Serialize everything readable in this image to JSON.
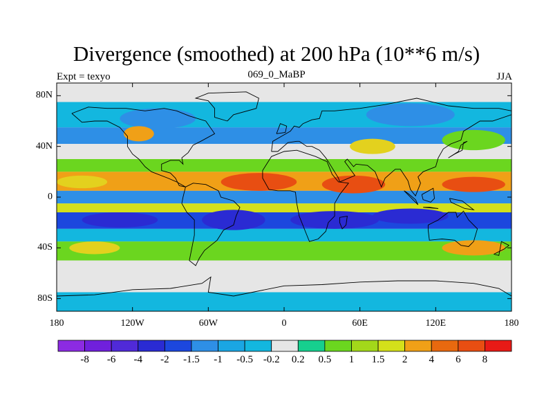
{
  "title": "Divergence (smoothed) at 200 hPa (10**6 m/s)",
  "left_label": "Expt = texyo",
  "center_label": "069_0_MaBP",
  "right_label": "JJA",
  "map": {
    "lon_range": [
      -180,
      180
    ],
    "lat_range": [
      -90,
      90
    ],
    "x_ticks": [
      {
        "lon": -180,
        "label": "180"
      },
      {
        "lon": -120,
        "label": "120W"
      },
      {
        "lon": -60,
        "label": "60W"
      },
      {
        "lon": 0,
        "label": "0"
      },
      {
        "lon": 60,
        "label": "60E"
      },
      {
        "lon": 120,
        "label": "120E"
      },
      {
        "lon": 180,
        "label": "180"
      }
    ],
    "y_ticks": [
      {
        "lat": 80,
        "label": "80N"
      },
      {
        "lat": 40,
        "label": "40N"
      },
      {
        "lat": 0,
        "label": "0"
      },
      {
        "lat": -40,
        "label": "40S"
      },
      {
        "lat": -80,
        "label": "80S"
      }
    ],
    "bands": [
      {
        "lat_from": 90,
        "lat_to": 75,
        "color": "#e6e6e6"
      },
      {
        "lat_from": 75,
        "lat_to": 55,
        "color": "#13b7df"
      },
      {
        "lat_from": 55,
        "lat_to": 42,
        "color": "#2e8fe6"
      },
      {
        "lat_from": 42,
        "lat_to": 30,
        "color": "#e6e6e6"
      },
      {
        "lat_from": 30,
        "lat_to": 20,
        "color": "#6bd61f"
      },
      {
        "lat_from": 20,
        "lat_to": 5,
        "color": "#f0a017"
      },
      {
        "lat_from": 5,
        "lat_to": -5,
        "color": "#2e8fe6"
      },
      {
        "lat_from": -5,
        "lat_to": -12,
        "color": "#d4e01a"
      },
      {
        "lat_from": -12,
        "lat_to": -25,
        "color": "#1c47de"
      },
      {
        "lat_from": -25,
        "lat_to": -35,
        "color": "#13b7df"
      },
      {
        "lat_from": -35,
        "lat_to": -50,
        "color": "#6bd61f"
      },
      {
        "lat_from": -50,
        "lat_to": -75,
        "color": "#e6e6e6"
      },
      {
        "lat_from": -75,
        "lat_to": -90,
        "color": "#13b7df"
      }
    ],
    "patches": [
      {
        "lon": -100,
        "lat": 62,
        "rlon": 30,
        "rlat": 8,
        "color": "#2e8fe6"
      },
      {
        "lon": -115,
        "lat": 50,
        "rlon": 12,
        "rlat": 6,
        "color": "#f0a017"
      },
      {
        "lon": 100,
        "lat": 65,
        "rlon": 35,
        "rlat": 9,
        "color": "#2e8fe6"
      },
      {
        "lon": 150,
        "lat": 45,
        "rlon": 25,
        "rlat": 8,
        "color": "#6bd61f"
      },
      {
        "lon": 70,
        "lat": 40,
        "rlon": 18,
        "rlat": 6,
        "color": "#e3d11e"
      },
      {
        "lon": -20,
        "lat": 12,
        "rlon": 30,
        "rlat": 7,
        "color": "#e84e12"
      },
      {
        "lon": 55,
        "lat": 10,
        "rlon": 25,
        "rlat": 7,
        "color": "#e84e12"
      },
      {
        "lon": 150,
        "lat": 10,
        "rlon": 25,
        "rlat": 6,
        "color": "#e84e12"
      },
      {
        "lon": -160,
        "lat": 12,
        "rlon": 20,
        "rlat": 5,
        "color": "#e3d11e"
      },
      {
        "lon": -40,
        "lat": -18,
        "rlon": 25,
        "rlat": 8,
        "color": "#2a2bd3"
      },
      {
        "lon": 40,
        "lat": -18,
        "rlon": 35,
        "rlat": 7,
        "color": "#2a2bd3"
      },
      {
        "lon": -130,
        "lat": -18,
        "rlon": 30,
        "rlat": 6,
        "color": "#2a2bd3"
      },
      {
        "lon": 100,
        "lat": -15,
        "rlon": 30,
        "rlat": 6,
        "color": "#2a2bd3"
      },
      {
        "lon": 150,
        "lat": -40,
        "rlon": 25,
        "rlat": 6,
        "color": "#f0a017"
      },
      {
        "lon": -150,
        "lat": -40,
        "rlon": 20,
        "rlat": 5,
        "color": "#e3d11e"
      }
    ],
    "coast": [
      [
        [
          -168,
          66
        ],
        [
          -155,
          71
        ],
        [
          -140,
          70
        ],
        [
          -125,
          70
        ],
        [
          -110,
          68
        ],
        [
          -95,
          70
        ],
        [
          -85,
          68
        ],
        [
          -75,
          64
        ],
        [
          -62,
          60
        ],
        [
          -55,
          50
        ],
        [
          -66,
          44
        ],
        [
          -72,
          41
        ],
        [
          -76,
          35
        ],
        [
          -81,
          31
        ],
        [
          -80,
          26
        ],
        [
          -83,
          29
        ],
        [
          -90,
          29
        ],
        [
          -97,
          26
        ],
        [
          -97,
          21
        ],
        [
          -90,
          19
        ],
        [
          -86,
          15
        ],
        [
          -83,
          9
        ],
        [
          -78,
          8
        ],
        [
          -85,
          12
        ],
        [
          -92,
          15
        ],
        [
          -105,
          20
        ],
        [
          -110,
          24
        ],
        [
          -115,
          30
        ],
        [
          -120,
          34
        ],
        [
          -124,
          40
        ],
        [
          -124,
          48
        ],
        [
          -130,
          55
        ],
        [
          -140,
          60
        ],
        [
          -150,
          60
        ],
        [
          -160,
          59
        ],
        [
          -168,
          66
        ]
      ],
      [
        [
          -78,
          8
        ],
        [
          -72,
          11
        ],
        [
          -62,
          10
        ],
        [
          -52,
          5
        ],
        [
          -50,
          0
        ],
        [
          -40,
          -3
        ],
        [
          -35,
          -8
        ],
        [
          -38,
          -15
        ],
        [
          -40,
          -22
        ],
        [
          -48,
          -26
        ],
        [
          -53,
          -34
        ],
        [
          -58,
          -38
        ],
        [
          -63,
          -42
        ],
        [
          -67,
          -48
        ],
        [
          -70,
          -54
        ],
        [
          -75,
          -50
        ],
        [
          -73,
          -40
        ],
        [
          -71,
          -30
        ],
        [
          -71,
          -18
        ],
        [
          -77,
          -12
        ],
        [
          -81,
          -5
        ],
        [
          -80,
          0
        ],
        [
          -78,
          8
        ]
      ],
      [
        [
          -10,
          36
        ],
        [
          -9,
          44
        ],
        [
          -2,
          48
        ],
        [
          5,
          52
        ],
        [
          8,
          56
        ],
        [
          12,
          55
        ],
        [
          15,
          58
        ],
        [
          22,
          61
        ],
        [
          28,
          62
        ],
        [
          30,
          68
        ],
        [
          40,
          68
        ],
        [
          60,
          70
        ],
        [
          80,
          73
        ],
        [
          105,
          78
        ],
        [
          130,
          72
        ],
        [
          150,
          70
        ],
        [
          170,
          70
        ],
        [
          180,
          68
        ],
        [
          180,
          65
        ],
        [
          165,
          60
        ],
        [
          155,
          60
        ],
        [
          142,
          52
        ],
        [
          140,
          45
        ],
        [
          132,
          42
        ],
        [
          126,
          38
        ],
        [
          122,
          31
        ],
        [
          120,
          24
        ],
        [
          110,
          20
        ],
        [
          106,
          16
        ],
        [
          108,
          11
        ],
        [
          104,
          1
        ],
        [
          100,
          6
        ],
        [
          98,
          13
        ],
        [
          92,
          22
        ],
        [
          88,
          22
        ],
        [
          80,
          15
        ],
        [
          77,
          8
        ],
        [
          72,
          20
        ],
        [
          66,
          25
        ],
        [
          57,
          26
        ],
        [
          55,
          24
        ],
        [
          50,
          30
        ],
        [
          48,
          28
        ],
        [
          56,
          17
        ],
        [
          44,
          12
        ],
        [
          43,
          15
        ],
        [
          35,
          28
        ],
        [
          33,
          31
        ],
        [
          28,
          37
        ],
        [
          22,
          40
        ],
        [
          18,
          40
        ],
        [
          12,
          44
        ],
        [
          10,
          44
        ],
        [
          3,
          43
        ],
        [
          -5,
          36
        ],
        [
          -10,
          36
        ]
      ],
      [
        [
          -17,
          21
        ],
        [
          -17,
          15
        ],
        [
          -12,
          6
        ],
        [
          -5,
          5
        ],
        [
          5,
          5
        ],
        [
          9,
          4
        ],
        [
          10,
          -5
        ],
        [
          12,
          -15
        ],
        [
          18,
          -30
        ],
        [
          20,
          -35
        ],
        [
          27,
          -33
        ],
        [
          33,
          -27
        ],
        [
          35,
          -20
        ],
        [
          40,
          -15
        ],
        [
          40,
          -5
        ],
        [
          44,
          2
        ],
        [
          51,
          11
        ],
        [
          43,
          12
        ],
        [
          38,
          18
        ],
        [
          34,
          28
        ],
        [
          25,
          32
        ],
        [
          10,
          37
        ],
        [
          0,
          36
        ],
        [
          -10,
          32
        ],
        [
          -17,
          21
        ]
      ],
      [
        [
          114,
          -22
        ],
        [
          122,
          -18
        ],
        [
          130,
          -12
        ],
        [
          136,
          -12
        ],
        [
          137,
          -16
        ],
        [
          142,
          -11
        ],
        [
          146,
          -18
        ],
        [
          153,
          -25
        ],
        [
          150,
          -35
        ],
        [
          146,
          -39
        ],
        [
          140,
          -38
        ],
        [
          135,
          -34
        ],
        [
          125,
          -33
        ],
        [
          115,
          -34
        ],
        [
          114,
          -26
        ],
        [
          114,
          -22
        ]
      ],
      [
        [
          -45,
          60
        ],
        [
          -55,
          63
        ],
        [
          -55,
          70
        ],
        [
          -60,
          76
        ],
        [
          -70,
          78
        ],
        [
          -60,
          82
        ],
        [
          -30,
          83
        ],
        [
          -20,
          78
        ],
        [
          -22,
          70
        ],
        [
          -40,
          65
        ],
        [
          -45,
          60
        ]
      ],
      [
        [
          -180,
          -78
        ],
        [
          -150,
          -77
        ],
        [
          -120,
          -73
        ],
        [
          -90,
          -72
        ],
        [
          -65,
          -68
        ],
        [
          -58,
          -63
        ],
        [
          -60,
          -75
        ],
        [
          -40,
          -78
        ],
        [
          0,
          -70
        ],
        [
          30,
          -69
        ],
        [
          60,
          -67
        ],
        [
          90,
          -66
        ],
        [
          120,
          -66
        ],
        [
          150,
          -68
        ],
        [
          170,
          -72
        ],
        [
          180,
          -78
        ]
      ],
      [
        [
          -6,
          50
        ],
        [
          -3,
          58
        ],
        [
          2,
          56
        ],
        [
          1,
          51
        ],
        [
          -6,
          50
        ]
      ],
      [
        [
          130,
          31
        ],
        [
          135,
          34
        ],
        [
          141,
          37
        ],
        [
          142,
          43
        ],
        [
          145,
          44
        ],
        [
          140,
          41
        ],
        [
          138,
          36
        ],
        [
          130,
          31
        ]
      ],
      [
        [
          44,
          -16
        ],
        [
          50,
          -15
        ],
        [
          49,
          -22
        ],
        [
          46,
          -25
        ],
        [
          44,
          -20
        ],
        [
          44,
          -16
        ]
      ],
      [
        [
          95,
          5
        ],
        [
          106,
          -6
        ],
        [
          104,
          -2
        ],
        [
          98,
          3
        ],
        [
          95,
          5
        ]
      ],
      [
        [
          110,
          -8
        ],
        [
          115,
          -8
        ],
        [
          122,
          -9
        ],
        [
          110,
          -8
        ]
      ],
      [
        [
          109,
          2
        ],
        [
          118,
          7
        ],
        [
          119,
          -1
        ],
        [
          116,
          -4
        ],
        [
          110,
          -2
        ],
        [
          109,
          2
        ]
      ],
      [
        [
          131,
          -1
        ],
        [
          141,
          -3
        ],
        [
          150,
          -10
        ],
        [
          143,
          -9
        ],
        [
          132,
          -4
        ],
        [
          131,
          -1
        ]
      ],
      [
        [
          166,
          -45
        ],
        [
          174,
          -41
        ],
        [
          178,
          -38
        ],
        [
          172,
          -35
        ],
        [
          170,
          -46
        ],
        [
          166,
          -45
        ]
      ]
    ]
  },
  "colorbar": {
    "labels": [
      "-8",
      "-6",
      "-4",
      "-2",
      "-1.5",
      "-1",
      "-0.5",
      "-0.2",
      "0.2",
      "0.5",
      "1",
      "1.5",
      "2",
      "4",
      "6",
      "8"
    ],
    "colors": [
      "#8c2be2",
      "#7020dc",
      "#502ad8",
      "#2a2bd3",
      "#1c47de",
      "#2e8fe6",
      "#1aa6e3",
      "#13b7df",
      "#e6e6e6",
      "#16cf8e",
      "#6bd61f",
      "#a3d81a",
      "#d4e01a",
      "#f0a017",
      "#e8690f",
      "#e84e12",
      "#e81a16"
    ]
  }
}
